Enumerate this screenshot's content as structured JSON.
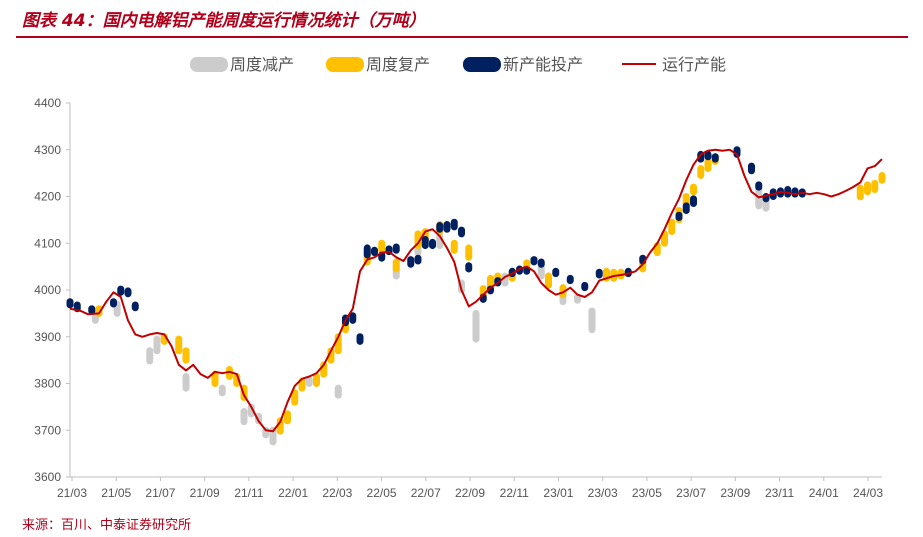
{
  "header": {
    "title": "图表 44：国内电解铝产能周度运行情况统计（万吨）"
  },
  "footer": {
    "source": "来源：百川、中泰证券研究所"
  },
  "chart_data": {
    "type": "line",
    "ylim": [
      3600,
      4400
    ],
    "yticks": [
      3600,
      3700,
      3800,
      3900,
      4000,
      4100,
      4200,
      4300,
      4400
    ],
    "xticks": [
      "21/03",
      "21/05",
      "21/07",
      "21/09",
      "21/11",
      "22/01",
      "22/03",
      "22/05",
      "22/07",
      "22/09",
      "22/11",
      "23/01",
      "23/03",
      "23/05",
      "23/07",
      "23/09",
      "23/11",
      "24/01",
      "24/03"
    ],
    "legend": [
      "周度减产",
      "周度复产",
      "新产能投产",
      "运行产能"
    ],
    "legend_position": "top",
    "grid": false,
    "colors": {
      "cut": "#cccccc",
      "resume": "#ffc000",
      "new": "#002060",
      "line": "#c00000"
    },
    "series": [
      {
        "name": "运行产能",
        "kind": "line",
        "points": [
          [
            0,
            3960
          ],
          [
            1.5,
            3955
          ],
          [
            2.5,
            3948
          ],
          [
            4,
            3950
          ],
          [
            5,
            3975
          ],
          [
            6,
            3995
          ],
          [
            7,
            3985
          ],
          [
            8,
            3935
          ],
          [
            9,
            3905
          ],
          [
            10,
            3900
          ],
          [
            11,
            3905
          ],
          [
            12,
            3908
          ],
          [
            13,
            3905
          ],
          [
            14,
            3880
          ],
          [
            15,
            3840
          ],
          [
            16,
            3828
          ],
          [
            17,
            3840
          ],
          [
            18,
            3820
          ],
          [
            19,
            3812
          ],
          [
            20,
            3825
          ],
          [
            21,
            3822
          ],
          [
            22,
            3825
          ],
          [
            23,
            3820
          ],
          [
            24,
            3775
          ],
          [
            25,
            3750
          ],
          [
            26,
            3720
          ],
          [
            27,
            3700
          ],
          [
            28,
            3698
          ],
          [
            29,
            3718
          ],
          [
            30,
            3760
          ],
          [
            31,
            3795
          ],
          [
            32,
            3810
          ],
          [
            33,
            3815
          ],
          [
            34,
            3822
          ],
          [
            35,
            3840
          ],
          [
            36,
            3870
          ],
          [
            37,
            3900
          ],
          [
            38,
            3935
          ],
          [
            39,
            3960
          ],
          [
            40,
            4040
          ],
          [
            41,
            4065
          ],
          [
            42,
            4070
          ],
          [
            43,
            4080
          ],
          [
            44,
            4082
          ],
          [
            45,
            4070
          ],
          [
            46,
            4062
          ],
          [
            47,
            4085
          ],
          [
            48,
            4100
          ],
          [
            49,
            4125
          ],
          [
            50,
            4130
          ],
          [
            51,
            4115
          ],
          [
            52,
            4090
          ],
          [
            53,
            4060
          ],
          [
            54,
            4000
          ],
          [
            55,
            3965
          ],
          [
            56,
            3975
          ],
          [
            57,
            3990
          ],
          [
            58,
            4005
          ],
          [
            59,
            4015
          ],
          [
            60,
            4028
          ],
          [
            61,
            4035
          ],
          [
            62,
            4045
          ],
          [
            63,
            4050
          ],
          [
            64,
            4040
          ],
          [
            65,
            4015
          ],
          [
            66,
            4000
          ],
          [
            67,
            3990
          ],
          [
            68,
            3995
          ],
          [
            69,
            4005
          ],
          [
            70,
            3990
          ],
          [
            71,
            3985
          ],
          [
            72,
            3995
          ],
          [
            73,
            4020
          ],
          [
            74,
            4025
          ],
          [
            75,
            4030
          ],
          [
            76,
            4032
          ],
          [
            77,
            4035
          ],
          [
            78,
            4040
          ],
          [
            79,
            4055
          ],
          [
            80,
            4080
          ],
          [
            81,
            4100
          ],
          [
            82,
            4130
          ],
          [
            83,
            4165
          ],
          [
            84,
            4195
          ],
          [
            85,
            4235
          ],
          [
            86,
            4268
          ],
          [
            87,
            4290
          ],
          [
            88,
            4298
          ],
          [
            89,
            4300
          ],
          [
            90,
            4298
          ],
          [
            91,
            4300
          ],
          [
            92,
            4290
          ],
          [
            93,
            4245
          ],
          [
            94,
            4210
          ],
          [
            95,
            4198
          ],
          [
            96,
            4202
          ],
          [
            97,
            4205
          ],
          [
            98,
            4210
          ],
          [
            99,
            4208
          ],
          [
            100,
            4205
          ],
          [
            101,
            4208
          ],
          [
            102,
            4205
          ],
          [
            103,
            4208
          ],
          [
            104,
            4205
          ],
          [
            105,
            4200
          ],
          [
            106,
            4205
          ],
          [
            107,
            4212
          ],
          [
            108,
            4220
          ],
          [
            109,
            4230
          ],
          [
            110,
            4260
          ],
          [
            111,
            4265
          ],
          [
            112,
            4280
          ]
        ]
      },
      {
        "name": "周度减产",
        "kind": "segment",
        "bars": [
          [
            3.5,
            3950,
            3935
          ],
          [
            6.5,
            3970,
            3950
          ],
          [
            11,
            3870,
            3848
          ],
          [
            12,
            3895,
            3870
          ],
          [
            16,
            3815,
            3790
          ],
          [
            21,
            3790,
            3780
          ],
          [
            24,
            3740,
            3718
          ],
          [
            25,
            3750,
            3735
          ],
          [
            26,
            3730,
            3720
          ],
          [
            27,
            3700,
            3690
          ],
          [
            28,
            3700,
            3675
          ],
          [
            33,
            3808,
            3800
          ],
          [
            37,
            3790,
            3775
          ],
          [
            45,
            4050,
            4030
          ],
          [
            48,
            4090,
            4080
          ],
          [
            51,
            4115,
            4095
          ],
          [
            54,
            4015,
            4000
          ],
          [
            56,
            3950,
            3895
          ],
          [
            60,
            4030,
            4015
          ],
          [
            65,
            4048,
            4030
          ],
          [
            68,
            3995,
            3975
          ],
          [
            70,
            3985,
            3978
          ],
          [
            72,
            3955,
            3915
          ],
          [
            95,
            4225,
            4180
          ],
          [
            96,
            4200,
            4175
          ],
          [
            109,
            4200,
            4200
          ]
        ]
      },
      {
        "name": "周度复产",
        "kind": "segment",
        "bars": [
          [
            4,
            3960,
            3950
          ],
          [
            13,
            3900,
            3890
          ],
          [
            15,
            3895,
            3870
          ],
          [
            16,
            3870,
            3850
          ],
          [
            20,
            3820,
            3800
          ],
          [
            22,
            3830,
            3815
          ],
          [
            23,
            3815,
            3800
          ],
          [
            24,
            3790,
            3770
          ],
          [
            29,
            3720,
            3698
          ],
          [
            30,
            3735,
            3720
          ],
          [
            31,
            3780,
            3760
          ],
          [
            32,
            3805,
            3790
          ],
          [
            34,
            3815,
            3800
          ],
          [
            35,
            3840,
            3820
          ],
          [
            36,
            3870,
            3850
          ],
          [
            37,
            3900,
            3870
          ],
          [
            38,
            3930,
            3915
          ],
          [
            41,
            4080,
            4060
          ],
          [
            43,
            4100,
            4085
          ],
          [
            45,
            4060,
            4045
          ],
          [
            48,
            4120,
            4095
          ],
          [
            49,
            4125,
            4105
          ],
          [
            51,
            4140,
            4125
          ],
          [
            53,
            4100,
            4085
          ],
          [
            55,
            4090,
            4070
          ],
          [
            57,
            4003,
            3990
          ],
          [
            58,
            4025,
            4005
          ],
          [
            59,
            4030,
            4020
          ],
          [
            61,
            4040,
            4025
          ],
          [
            63,
            4058,
            4045
          ],
          [
            66,
            4030,
            4010
          ],
          [
            68,
            4005,
            3990
          ],
          [
            74,
            4040,
            4025
          ],
          [
            75,
            4038,
            4025
          ],
          [
            76,
            4038,
            4030
          ],
          [
            79,
            4058,
            4045
          ],
          [
            81,
            4095,
            4080
          ],
          [
            82,
            4120,
            4100
          ],
          [
            83,
            4145,
            4125
          ],
          [
            84,
            4170,
            4150
          ],
          [
            85,
            4200,
            4180
          ],
          [
            86,
            4220,
            4210
          ],
          [
            87,
            4260,
            4245
          ],
          [
            88,
            4275,
            4260
          ],
          [
            89,
            4285,
            4275
          ],
          [
            109,
            4218,
            4200
          ],
          [
            110,
            4225,
            4210
          ],
          [
            111,
            4228,
            4215
          ],
          [
            112,
            4245,
            4235
          ]
        ]
      },
      {
        "name": "新产能投产",
        "kind": "segment",
        "bars": [
          [
            0,
            3975,
            3968
          ],
          [
            1,
            3968,
            3960
          ],
          [
            3,
            3960,
            3955
          ],
          [
            6,
            3975,
            3970
          ],
          [
            7,
            4002,
            3995
          ],
          [
            8,
            3998,
            3992
          ],
          [
            9,
            3968,
            3962
          ],
          [
            38,
            3940,
            3930
          ],
          [
            39,
            3945,
            3935
          ],
          [
            40,
            3900,
            3890
          ],
          [
            41,
            4090,
            4075
          ],
          [
            42,
            4085,
            4080
          ],
          [
            43,
            4075,
            4068
          ],
          [
            44,
            4088,
            4082
          ],
          [
            45,
            4092,
            4085
          ],
          [
            47,
            4065,
            4055
          ],
          [
            48,
            4068,
            4062
          ],
          [
            49,
            4108,
            4095
          ],
          [
            50,
            4102,
            4095
          ],
          [
            51,
            4138,
            4130
          ],
          [
            52,
            4140,
            4130
          ],
          [
            53,
            4145,
            4135
          ],
          [
            54,
            4128,
            4120
          ],
          [
            55,
            4052,
            4045
          ],
          [
            57,
            3985,
            3980
          ],
          [
            58,
            4002,
            3998
          ],
          [
            59,
            4020,
            4015
          ],
          [
            61,
            4040,
            4035
          ],
          [
            62,
            4045,
            4040
          ],
          [
            63,
            4043,
            4040
          ],
          [
            64,
            4065,
            4060
          ],
          [
            65,
            4060,
            4055
          ],
          [
            67,
            4040,
            4035
          ],
          [
            69,
            4025,
            4020
          ],
          [
            71,
            4010,
            4005
          ],
          [
            73,
            4038,
            4032
          ],
          [
            77,
            4040,
            4035
          ],
          [
            79,
            4068,
            4062
          ],
          [
            84,
            4160,
            4155
          ],
          [
            85,
            4180,
            4170
          ],
          [
            86,
            4195,
            4185
          ],
          [
            87,
            4290,
            4280
          ],
          [
            88,
            4290,
            4285
          ],
          [
            89,
            4285,
            4280
          ],
          [
            92,
            4300,
            4290
          ],
          [
            94,
            4265,
            4255
          ],
          [
            95,
            4225,
            4220
          ],
          [
            96,
            4200,
            4195
          ],
          [
            97,
            4210,
            4200
          ],
          [
            98,
            4212,
            4205
          ],
          [
            99,
            4215,
            4205
          ],
          [
            100,
            4212,
            4205
          ],
          [
            101,
            4210,
            4205
          ]
        ]
      }
    ]
  }
}
